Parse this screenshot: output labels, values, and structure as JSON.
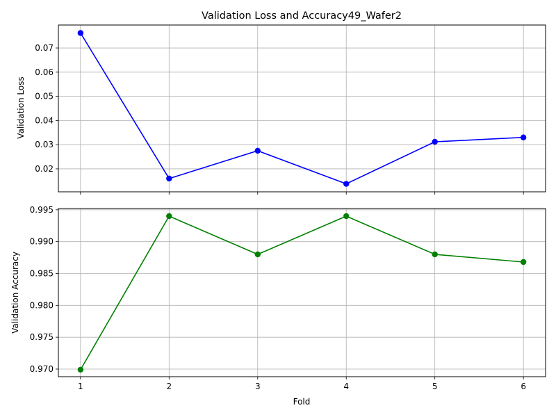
{
  "chart_data": {
    "type": "line",
    "title": "Validation Loss and Accuracy49_Wafer2",
    "xlabel": "Fold",
    "x": [
      1,
      2,
      3,
      4,
      5,
      6
    ],
    "x_ticks": [
      "1",
      "2",
      "3",
      "4",
      "5",
      "6"
    ],
    "xlim": [
      0.75,
      6.25
    ],
    "grid": true,
    "subplots": [
      {
        "ylabel": "Validation Loss",
        "ylim": [
          0.0105,
          0.0795
        ],
        "y_ticks": [
          "0.02",
          "0.03",
          "0.04",
          "0.05",
          "0.06",
          "0.07"
        ],
        "y_tick_values": [
          0.02,
          0.03,
          0.04,
          0.05,
          0.06,
          0.07
        ],
        "series": [
          {
            "values": [
              0.0762,
              0.016,
              0.0275,
              0.0138,
              0.0312,
              0.033
            ],
            "color": "#0000ff",
            "marker": "circle"
          }
        ]
      },
      {
        "ylabel": "Validation Accuracy",
        "ylim": [
          0.9688,
          0.9952
        ],
        "y_ticks": [
          "0.970",
          "0.975",
          "0.980",
          "0.985",
          "0.990",
          "0.995"
        ],
        "y_tick_values": [
          0.97,
          0.975,
          0.98,
          0.985,
          0.99,
          0.995
        ],
        "series": [
          {
            "values": [
              0.9699,
              0.994,
              0.988,
              0.994,
              0.988,
              0.9868
            ],
            "color": "#008000",
            "marker": "circle"
          }
        ]
      }
    ]
  }
}
